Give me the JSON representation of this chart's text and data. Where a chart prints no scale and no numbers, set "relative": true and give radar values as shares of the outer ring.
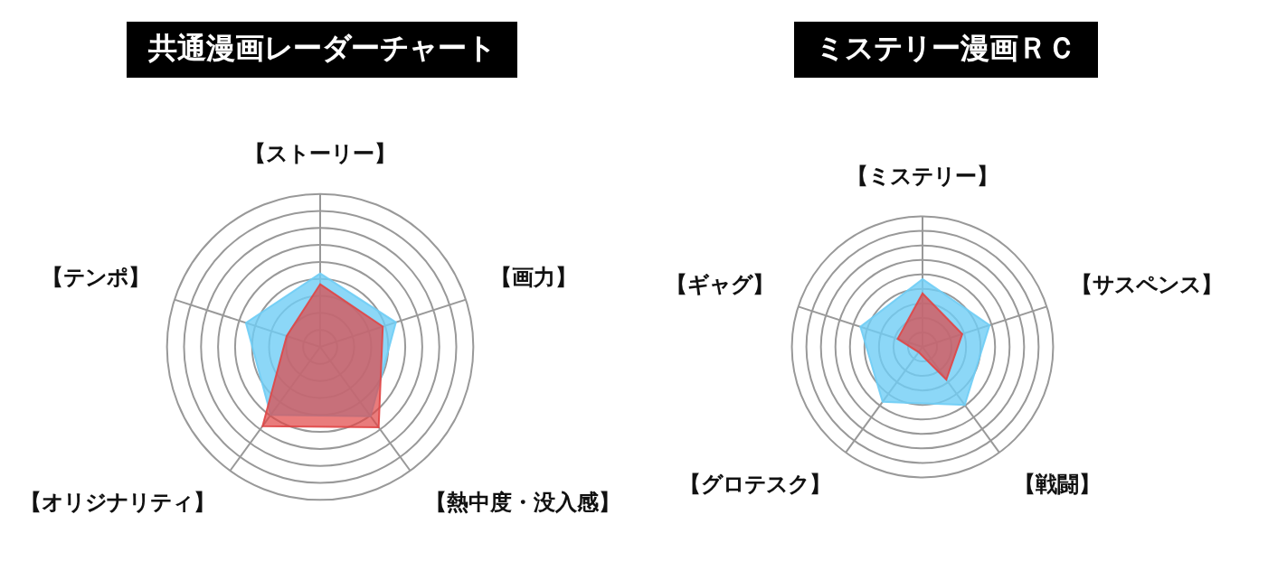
{
  "chart_data": [
    {
      "type": "radar",
      "title": "共通漫画レーダーチャート",
      "relative": true,
      "grid": true,
      "legend": false,
      "categories": [
        "【ストーリー】",
        "【画力】",
        "【熱中度・没入感】",
        "【オリジナリティ】",
        "【テンポ】"
      ],
      "series": [
        {
          "color": "#6fcdf5",
          "values": [
            0.48,
            0.52,
            0.56,
            0.55,
            0.51
          ]
        },
        {
          "color": "#e04545",
          "values": [
            0.41,
            0.43,
            0.65,
            0.64,
            0.23
          ]
        }
      ]
    },
    {
      "type": "radar",
      "title": "ミステリー漫画ＲＣ",
      "relative": true,
      "grid": true,
      "legend": false,
      "categories": [
        "【ミステリー】",
        "【サスペンス】",
        "【戦闘】",
        "【グロテスク】",
        "【ギャグ】"
      ],
      "series": [
        {
          "color": "#6fcdf5",
          "values": [
            0.52,
            0.54,
            0.55,
            0.52,
            0.5
          ]
        },
        {
          "color": "#e04545",
          "values": [
            0.41,
            0.32,
            0.31,
            0.05,
            0.2
          ]
        }
      ]
    }
  ]
}
